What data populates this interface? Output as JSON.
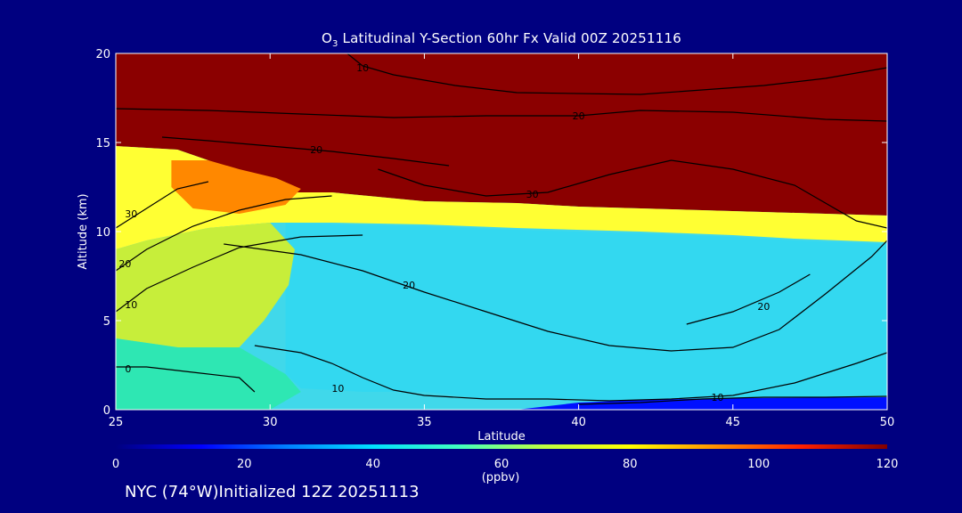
{
  "title": {
    "prefix": "O",
    "subscript": "3",
    "text": " Latitudinal Y-Section 60hr  Fx Valid 00Z 20251116"
  },
  "footer": "NYC (74°W)Initialized 12Z 20251113",
  "chart_data": {
    "type": "heatmap",
    "title": "O3 Latitudinal Y-Section 60hr  Fx Valid 00Z 20251116",
    "xlabel": "Latitude",
    "ylabel": "Altitude (km)",
    "xlim": [
      25,
      50
    ],
    "ylim": [
      0,
      20
    ],
    "x_ticks": [
      25,
      30,
      35,
      40,
      45,
      50
    ],
    "y_ticks": [
      0,
      5,
      10,
      15,
      20
    ],
    "x_tick_labels": [
      "25",
      "30",
      "35",
      "40",
      "45",
      "50"
    ],
    "y_tick_labels": [
      "0",
      "5",
      "10",
      "15",
      "20"
    ],
    "colorbar": {
      "min": 0,
      "max": 120,
      "ticks": [
        0,
        20,
        40,
        60,
        80,
        100,
        120
      ],
      "tick_labels": [
        "0",
        "20",
        "40",
        "60",
        "80",
        "100",
        "120"
      ],
      "units": "(ppbv)",
      "colors": [
        "#000080",
        "#0000ff",
        "#0080ff",
        "#00e0ff",
        "#40ffc0",
        "#c0ff40",
        "#ffff00",
        "#ff9000",
        "#ff2000",
        "#800000"
      ]
    },
    "bands": [
      {
        "name": "high",
        "color": "#8b0000",
        "poly": [
          [
            25,
            20
          ],
          [
            50,
            20
          ],
          [
            50,
            10.9
          ],
          [
            48,
            11
          ],
          [
            44,
            11.2
          ],
          [
            40,
            11.4
          ],
          [
            38,
            11.6
          ],
          [
            35,
            11.7
          ],
          [
            32,
            12.2
          ],
          [
            30,
            12.2
          ],
          [
            29,
            12.8
          ],
          [
            28,
            14
          ],
          [
            27,
            14.6
          ],
          [
            25,
            14.8
          ]
        ]
      },
      {
        "name": "tropopause-yellow",
        "color": "#ffff33",
        "poly": [
          [
            25,
            14.8
          ],
          [
            27,
            14.6
          ],
          [
            28,
            14
          ],
          [
            29,
            12.8
          ],
          [
            30,
            12.2
          ],
          [
            32,
            12.2
          ],
          [
            35,
            11.7
          ],
          [
            38,
            11.6
          ],
          [
            40,
            11.4
          ],
          [
            44,
            11.2
          ],
          [
            48,
            11
          ],
          [
            50,
            10.9
          ],
          [
            50,
            9.4
          ],
          [
            47,
            9.6
          ],
          [
            45,
            9.8
          ],
          [
            42,
            10
          ],
          [
            38,
            10.2
          ],
          [
            35,
            10.4
          ],
          [
            32,
            10.5
          ],
          [
            30,
            10.5
          ],
          [
            28,
            10.2
          ],
          [
            26,
            9.5
          ],
          [
            25,
            9
          ]
        ]
      },
      {
        "name": "red-core",
        "color": "#ff3300",
        "poly": [
          [
            27.5,
            13.7
          ],
          [
            28.5,
            13.2
          ],
          [
            29.3,
            13
          ],
          [
            30,
            12.5
          ],
          [
            30.5,
            12
          ],
          [
            29.5,
            11.6
          ],
          [
            28.5,
            11.5
          ],
          [
            27.7,
            12
          ],
          [
            27.4,
            12.8
          ]
        ]
      },
      {
        "name": "orange-halo",
        "color": "#ff8800",
        "poly": [
          [
            26.8,
            14
          ],
          [
            28,
            14
          ],
          [
            29,
            13.5
          ],
          [
            30.2,
            13
          ],
          [
            31,
            12.4
          ],
          [
            30.5,
            11.5
          ],
          [
            29,
            11
          ],
          [
            27.5,
            11.3
          ],
          [
            26.8,
            12.5
          ]
        ]
      },
      {
        "name": "mid-cyan",
        "color": "#33d8f0",
        "poly": [
          [
            30.5,
            10.5
          ],
          [
            32,
            10.4
          ],
          [
            35,
            10.3
          ],
          [
            38,
            10.1
          ],
          [
            42,
            9.9
          ],
          [
            45,
            9.7
          ],
          [
            47,
            9.5
          ],
          [
            50,
            9.3
          ],
          [
            50,
            0.8
          ],
          [
            47,
            0.7
          ],
          [
            44,
            0.6
          ],
          [
            42,
            0.5
          ],
          [
            40,
            0.5
          ],
          [
            37,
            0.6
          ],
          [
            35,
            1
          ],
          [
            33,
            1
          ],
          [
            31,
            1.2
          ],
          [
            30.5,
            2
          ]
        ]
      },
      {
        "name": "lower-left-green",
        "color": "#c7ee3a",
        "poly": [
          [
            25,
            9
          ],
          [
            26,
            9.5
          ],
          [
            28,
            10.2
          ],
          [
            30,
            10.5
          ],
          [
            30.8,
            9
          ],
          [
            30.6,
            7
          ],
          [
            29.8,
            5
          ],
          [
            29,
            3.5
          ],
          [
            27,
            3.5
          ],
          [
            25,
            4
          ]
        ]
      },
      {
        "name": "surface-green",
        "color": "#2ee7b3",
        "poly": [
          [
            25,
            4
          ],
          [
            27,
            3.5
          ],
          [
            29,
            3.5
          ],
          [
            30.5,
            2
          ],
          [
            31,
            1
          ],
          [
            30,
            0
          ],
          [
            25,
            0
          ]
        ]
      },
      {
        "name": "deep-blue-surface",
        "color": "#0010ff",
        "poly": [
          [
            38,
            0
          ],
          [
            50,
            0
          ],
          [
            50,
            0.7
          ],
          [
            45,
            0.65
          ],
          [
            42,
            0.55
          ],
          [
            40,
            0.4
          ]
        ]
      }
    ],
    "contours": [
      {
        "label": "10",
        "label_at": [
          33,
          19.2
        ],
        "points": [
          [
            32.5,
            20
          ],
          [
            33,
            19.3
          ],
          [
            34,
            18.8
          ],
          [
            36,
            18.2
          ],
          [
            38,
            17.8
          ],
          [
            42,
            17.7
          ],
          [
            46,
            18.2
          ],
          [
            48,
            18.6
          ],
          [
            50,
            19.2
          ]
        ]
      },
      {
        "label": "20",
        "label_at": [
          40,
          16.5
        ],
        "points": [
          [
            25,
            16.9
          ],
          [
            28,
            16.8
          ],
          [
            31,
            16.6
          ],
          [
            34,
            16.4
          ],
          [
            37,
            16.5
          ],
          [
            40,
            16.5
          ],
          [
            42,
            16.8
          ],
          [
            45,
            16.7
          ],
          [
            48,
            16.3
          ],
          [
            50,
            16.2
          ]
        ]
      },
      {
        "label": "20",
        "label_at": [
          31.5,
          14.6
        ],
        "points": [
          [
            26.5,
            15.3
          ],
          [
            28,
            15.1
          ],
          [
            30,
            14.8
          ],
          [
            32,
            14.5
          ],
          [
            34,
            14.1
          ],
          [
            35.8,
            13.7
          ]
        ]
      },
      {
        "label": "30",
        "label_at": [
          38.5,
          12.1
        ],
        "points": [
          [
            33.5,
            13.5
          ],
          [
            35,
            12.6
          ],
          [
            37,
            12
          ],
          [
            39,
            12.2
          ],
          [
            41,
            13.2
          ],
          [
            43,
            14
          ],
          [
            45,
            13.5
          ],
          [
            47,
            12.6
          ],
          [
            49,
            10.6
          ],
          [
            50,
            10.2
          ]
        ]
      },
      {
        "label": "30",
        "label_at": [
          25.5,
          11
        ],
        "points": [
          [
            25,
            10.2
          ],
          [
            26,
            11.3
          ],
          [
            27,
            12.4
          ],
          [
            28,
            12.8
          ]
        ]
      },
      {
        "label": "20",
        "label_at": [
          25.3,
          8.2
        ],
        "points": [
          [
            25,
            7.8
          ],
          [
            26,
            9
          ],
          [
            27.5,
            10.3
          ],
          [
            29,
            11.2
          ],
          [
            30.5,
            11.8
          ],
          [
            32,
            12
          ]
        ]
      },
      {
        "label": "10",
        "label_at": [
          25.5,
          5.9
        ],
        "points": [
          [
            25,
            5.5
          ],
          [
            26,
            6.8
          ],
          [
            27.5,
            8
          ],
          [
            29,
            9.1
          ],
          [
            31,
            9.7
          ],
          [
            33,
            9.8
          ]
        ]
      },
      {
        "label": "20",
        "label_at": [
          34.5,
          7
        ],
        "points": [
          [
            28.5,
            9.3
          ],
          [
            31,
            8.7
          ],
          [
            33,
            7.8
          ],
          [
            35,
            6.6
          ],
          [
            37,
            5.5
          ],
          [
            39,
            4.4
          ],
          [
            41,
            3.6
          ],
          [
            43,
            3.3
          ],
          [
            45,
            3.5
          ],
          [
            46.5,
            4.5
          ],
          [
            48,
            6.5
          ],
          [
            49.5,
            8.6
          ],
          [
            50,
            9.5
          ]
        ]
      },
      {
        "label": "20",
        "label_at": [
          46,
          5.8
        ],
        "points": [
          [
            43.5,
            4.8
          ],
          [
            45,
            5.5
          ],
          [
            46.5,
            6.6
          ],
          [
            47.5,
            7.6
          ]
        ]
      },
      {
        "label": "10",
        "label_at": [
          32.2,
          1.2
        ],
        "points": [
          [
            29.5,
            3.6
          ],
          [
            31,
            3.2
          ],
          [
            32,
            2.6
          ],
          [
            33,
            1.8
          ],
          [
            34,
            1.1
          ],
          [
            35,
            0.8
          ],
          [
            37,
            0.6
          ],
          [
            39,
            0.6
          ],
          [
            41,
            0.5
          ],
          [
            43,
            0.6
          ],
          [
            45,
            0.8
          ],
          [
            47,
            1.5
          ],
          [
            49,
            2.6
          ],
          [
            50,
            3.2
          ]
        ]
      },
      {
        "label": "10",
        "label_at": [
          44.5,
          0.7
        ],
        "points": [
          [
            40,
            0.3
          ],
          [
            42,
            0.4
          ],
          [
            44,
            0.6
          ],
          [
            46,
            0.7
          ],
          [
            48,
            0.7
          ],
          [
            50,
            0.75
          ]
        ]
      },
      {
        "label": "0",
        "label_at": [
          25.4,
          2.3
        ],
        "points": [
          [
            25,
            2.4
          ],
          [
            26,
            2.4
          ],
          [
            27.5,
            2.1
          ],
          [
            29,
            1.8
          ],
          [
            29.5,
            1
          ]
        ]
      }
    ]
  }
}
